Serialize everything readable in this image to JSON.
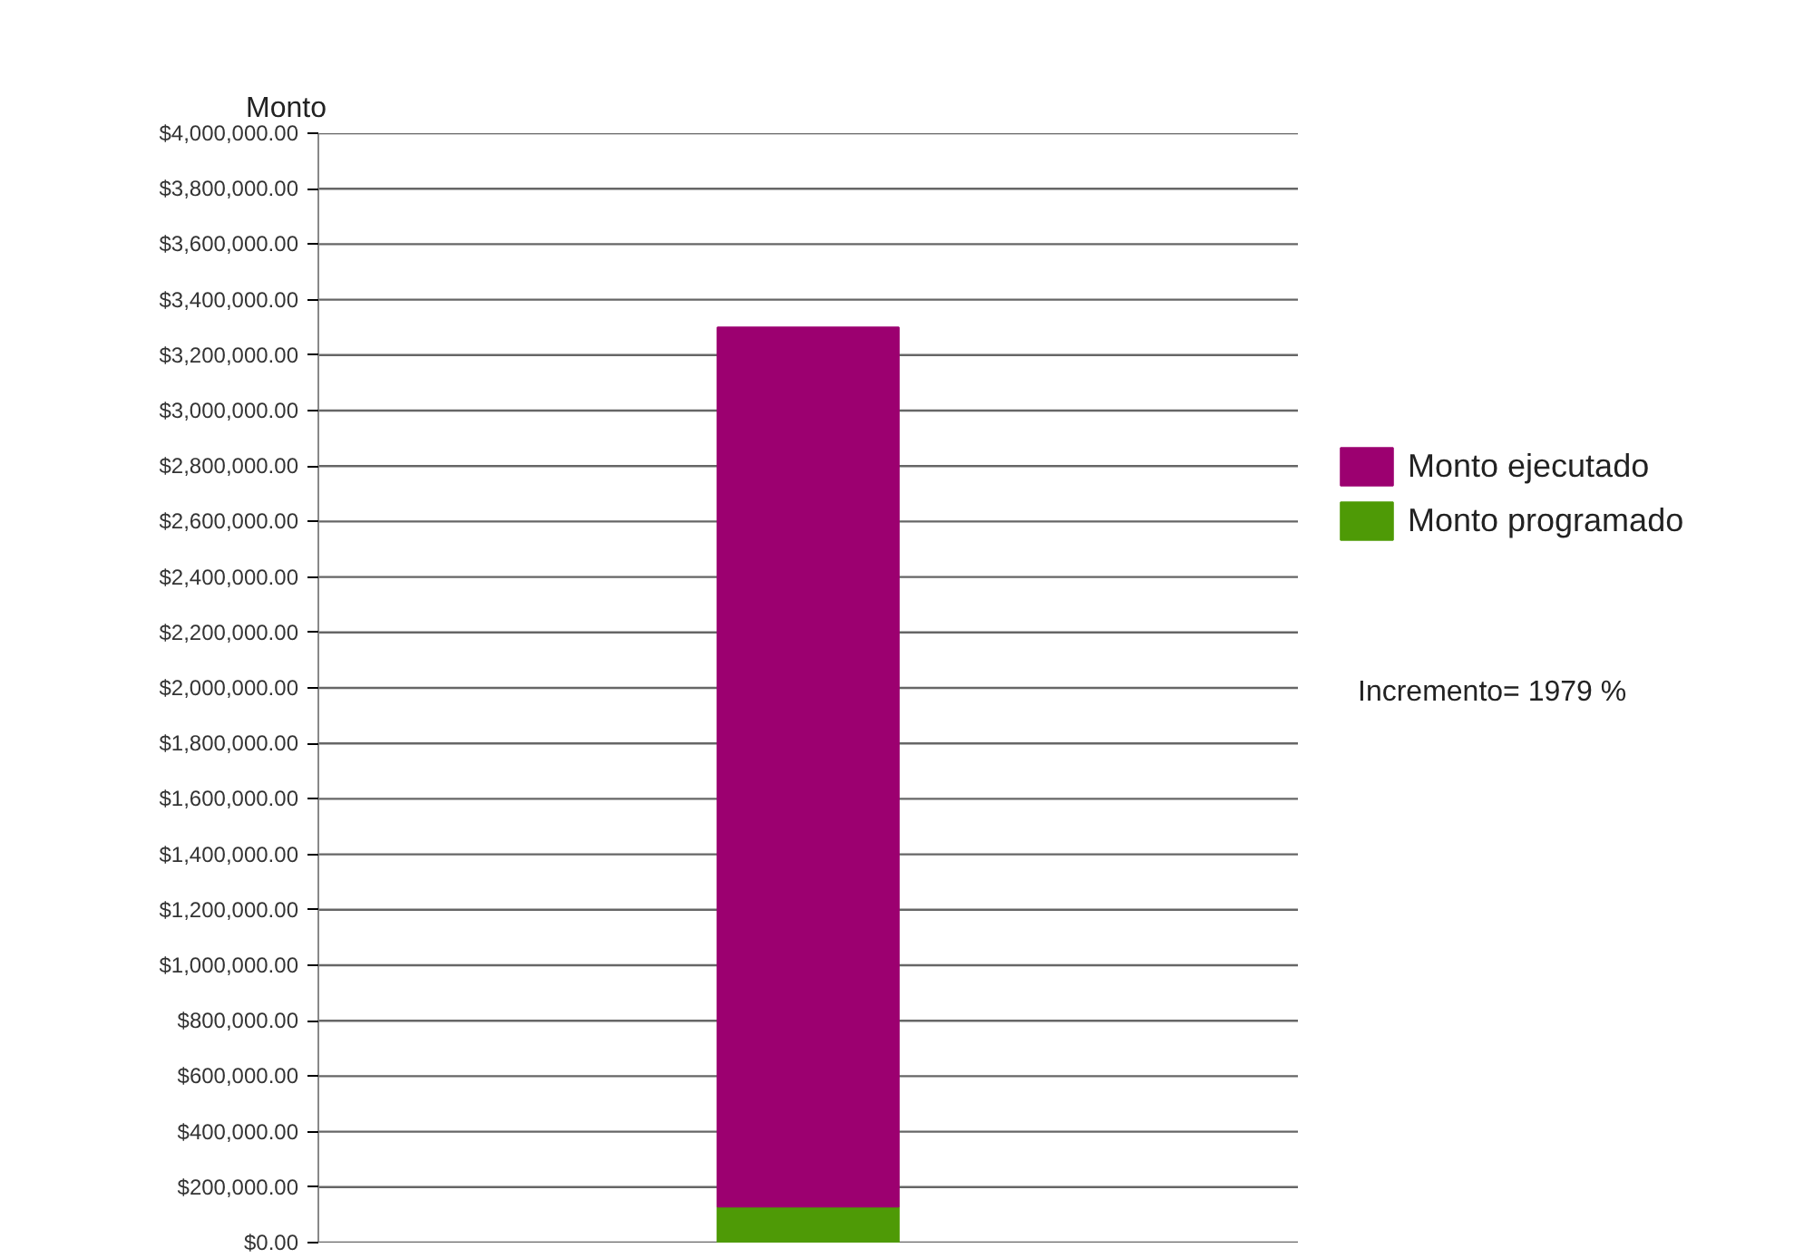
{
  "chart_data": {
    "type": "bar",
    "stacked": true,
    "ylabel": "Monto",
    "categories": [
      null
    ],
    "series": [
      {
        "name": "Monto programado",
        "color": "#4e9a06",
        "values": [
          130000
        ]
      },
      {
        "name": "Monto ejecutado",
        "color": "#9c0070",
        "values": [
          3170000
        ]
      }
    ],
    "ylim": [
      0,
      4000000
    ],
    "yticks": [
      {
        "value": 0,
        "label": "$0.00"
      },
      {
        "value": 200000,
        "label": "$200,000.00"
      },
      {
        "value": 400000,
        "label": "$400,000.00"
      },
      {
        "value": 600000,
        "label": "$600,000.00"
      },
      {
        "value": 800000,
        "label": "$800,000.00"
      },
      {
        "value": 1000000,
        "label": "$1,000,000.00"
      },
      {
        "value": 1200000,
        "label": "$1,200,000.00"
      },
      {
        "value": 1400000,
        "label": "$1,400,000.00"
      },
      {
        "value": 1600000,
        "label": "$1,600,000.00"
      },
      {
        "value": 1800000,
        "label": "$1,800,000.00"
      },
      {
        "value": 2000000,
        "label": "$2,000,000.00"
      },
      {
        "value": 2200000,
        "label": "$2,200,000.00"
      },
      {
        "value": 2400000,
        "label": "$2,400,000.00"
      },
      {
        "value": 2600000,
        "label": "$2,600,000.00"
      },
      {
        "value": 2800000,
        "label": "$2,800,000.00"
      },
      {
        "value": 3000000,
        "label": "$3,000,000.00"
      },
      {
        "value": 3200000,
        "label": "$3,200,000.00"
      },
      {
        "value": 3400000,
        "label": "$3,400,000.00"
      },
      {
        "value": 3600000,
        "label": "$3,600,000.00"
      },
      {
        "value": 3800000,
        "label": "$3,800,000.00"
      },
      {
        "value": 4000000,
        "label": "$4,000,000.00"
      }
    ],
    "grid": "y",
    "legend": "right",
    "tick_labels": "y",
    "annotations": [
      "Incremento= 1979 %"
    ]
  }
}
